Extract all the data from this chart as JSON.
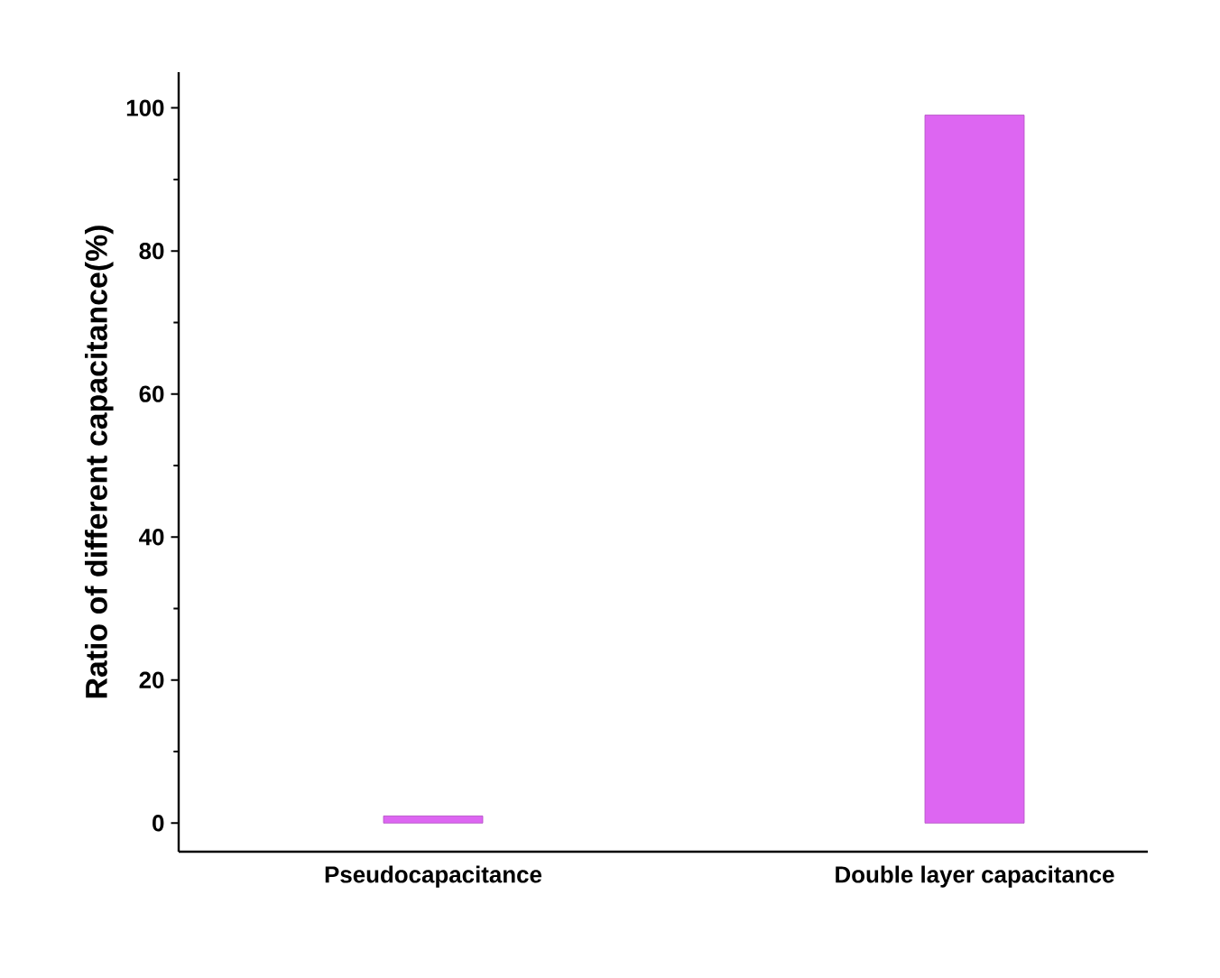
{
  "chart_data": {
    "type": "bar",
    "ylabel": "Ratio of different capacitance(%)",
    "categories": [
      "Pseudocapacitance",
      "Double layer capacitance"
    ],
    "values": [
      1,
      99
    ],
    "color": "#dd66f2",
    "ylim": [
      -4,
      105
    ],
    "yticks": [
      0,
      20,
      40,
      60,
      80,
      100
    ]
  }
}
